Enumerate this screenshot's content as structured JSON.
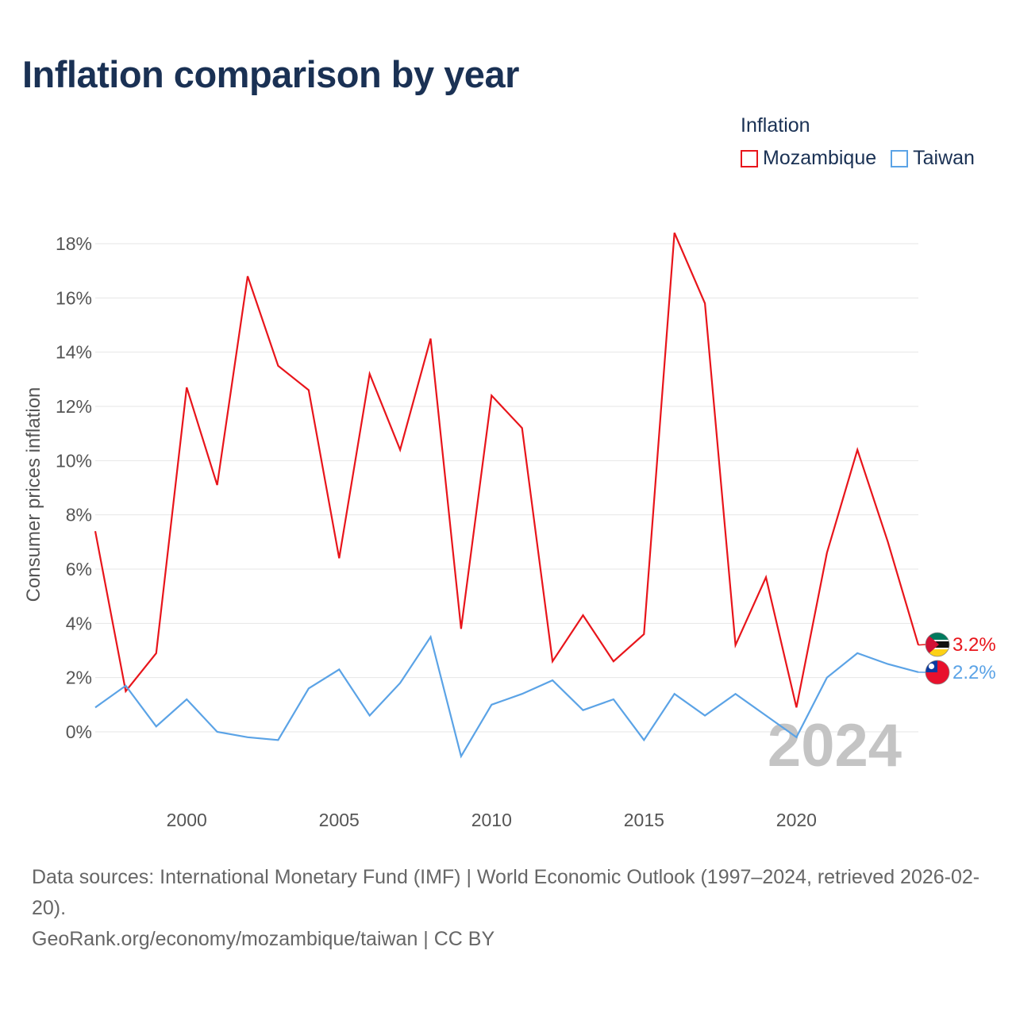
{
  "title": "Inflation comparison by year",
  "legend": {
    "title": "Inflation",
    "items": [
      {
        "label": "Mozambique",
        "color": "#e8151b"
      },
      {
        "label": "Taiwan",
        "color": "#5ba3e6"
      }
    ]
  },
  "chart_data": {
    "type": "line",
    "title": "Inflation comparison by year",
    "ylabel": "Consumer prices inflation",
    "xlabel": "",
    "x": [
      1997,
      1998,
      1999,
      2000,
      2001,
      2002,
      2003,
      2004,
      2005,
      2006,
      2007,
      2008,
      2009,
      2010,
      2011,
      2012,
      2013,
      2014,
      2015,
      2016,
      2017,
      2018,
      2019,
      2020,
      2021,
      2022,
      2023,
      2024
    ],
    "series": [
      {
        "name": "Mozambique",
        "color": "#e8151b",
        "values": [
          7.4,
          1.5,
          2.9,
          12.7,
          9.1,
          16.8,
          13.5,
          12.6,
          6.4,
          13.2,
          10.4,
          14.5,
          3.8,
          12.4,
          11.2,
          2.6,
          4.3,
          2.6,
          3.6,
          18.4,
          15.8,
          3.2,
          5.7,
          0.9,
          6.6,
          10.4,
          7.0,
          3.2
        ]
      },
      {
        "name": "Taiwan",
        "color": "#5ba3e6",
        "values": [
          0.9,
          1.7,
          0.2,
          1.2,
          0.0,
          -0.2,
          -0.3,
          1.6,
          2.3,
          0.6,
          1.8,
          3.5,
          -0.9,
          1.0,
          1.4,
          1.9,
          0.8,
          1.2,
          -0.3,
          1.4,
          0.6,
          1.4,
          0.6,
          -0.2,
          2.0,
          2.9,
          2.5,
          2.2
        ]
      }
    ],
    "ylim": [
      -2,
      18.4
    ],
    "xlim": [
      1997,
      2024
    ],
    "yticks": [
      0,
      2,
      4,
      6,
      8,
      10,
      12,
      14,
      16,
      18
    ],
    "ytick_labels": [
      "0%",
      "2%",
      "4%",
      "6%",
      "8%",
      "10%",
      "12%",
      "14%",
      "16%",
      "18%"
    ],
    "xticks": [
      2000,
      2005,
      2010,
      2015,
      2020
    ],
    "xtick_labels": [
      "2000",
      "2005",
      "2010",
      "2015",
      "2020"
    ],
    "grid": true,
    "end_labels": [
      {
        "series": "Mozambique",
        "text": "3.2%",
        "flag": "mozambique-flag"
      },
      {
        "series": "Taiwan",
        "text": "2.2%",
        "flag": "taiwan-flag"
      }
    ],
    "year_label": "2024"
  },
  "footer": {
    "sources": "Data sources: International Monetary Fund (IMF) | World Economic Outlook (1997–2024, retrieved 2026-02-20).",
    "credit": "GeoRank.org/economy/mozambique/taiwan | CC BY"
  }
}
